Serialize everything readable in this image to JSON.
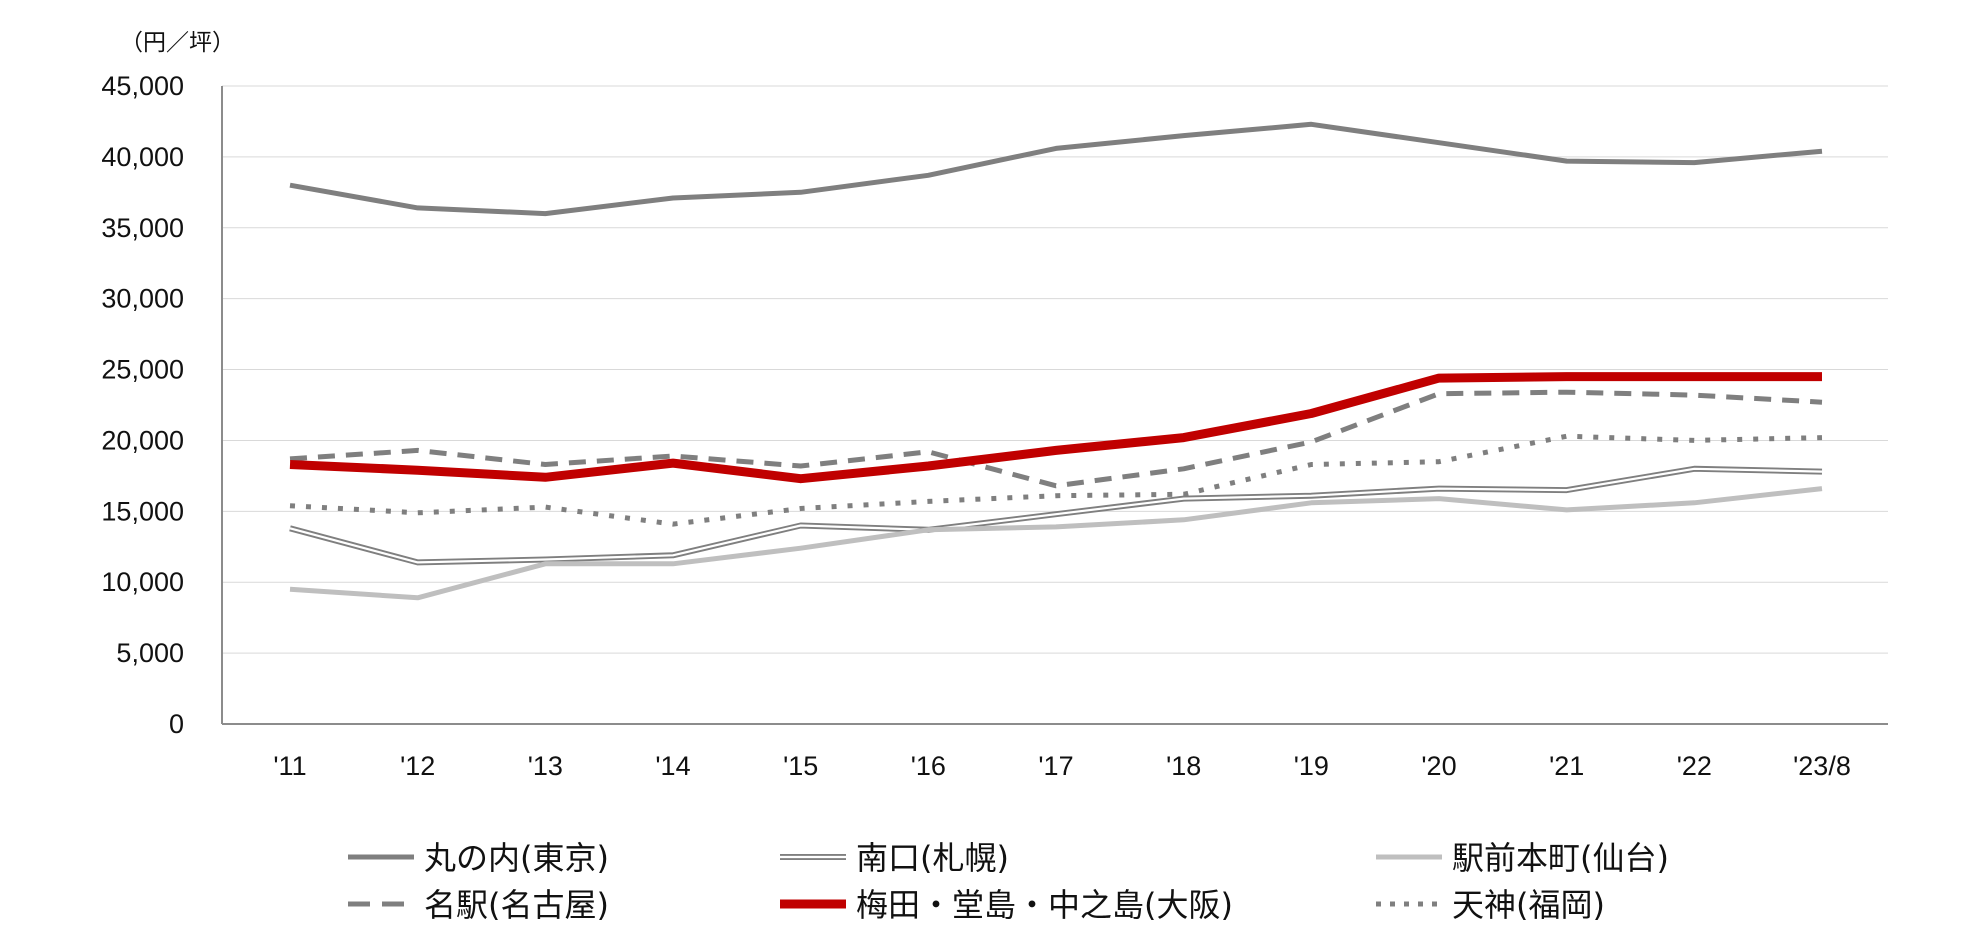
{
  "chart_data": {
    "type": "line",
    "title": "",
    "unit_label": "（円／坪）",
    "xlabel": "",
    "ylabel": "",
    "categories": [
      "'11",
      "'12",
      "'13",
      "'14",
      "'15",
      "'16",
      "'17",
      "'18",
      "'19",
      "'20",
      "'21",
      "'22",
      "'23/8"
    ],
    "ylim": [
      0,
      45000
    ],
    "yticks": [
      0,
      5000,
      10000,
      15000,
      20000,
      25000,
      30000,
      35000,
      40000,
      45000
    ],
    "ytick_labels": [
      "0",
      "5,000",
      "10,000",
      "15,000",
      "20,000",
      "25,000",
      "30,000",
      "35,000",
      "40,000",
      "45,000"
    ],
    "grid": true,
    "legend_position": "bottom",
    "series": [
      {
        "name": "丸の内(東京)",
        "style": "solid-thick",
        "color": "#7f7f7f",
        "values": [
          38000,
          36400,
          36000,
          37100,
          37500,
          38700,
          40600,
          41500,
          42300,
          41000,
          39700,
          39600,
          40400
        ]
      },
      {
        "name": "南口(札幌)",
        "style": "double",
        "color": "#7f7f7f",
        "values": [
          13800,
          11400,
          11600,
          11900,
          14000,
          13700,
          14800,
          15900,
          16100,
          16600,
          16500,
          18000,
          17800
        ]
      },
      {
        "name": "駅前本町(仙台)",
        "style": "solid-light",
        "color": "#bfbfbf",
        "values": [
          9500,
          8900,
          11300,
          11300,
          12400,
          13700,
          13900,
          14400,
          15600,
          15900,
          15100,
          15600,
          16600
        ]
      },
      {
        "name": "名駅(名古屋)",
        "style": "dashed",
        "color": "#7f7f7f",
        "values": [
          18700,
          19300,
          18300,
          18900,
          18200,
          19200,
          16800,
          18000,
          19900,
          23300,
          23400,
          23200,
          22700
        ]
      },
      {
        "name": "梅田・堂島・中之島(大阪)",
        "style": "solid-red",
        "color": "#c00000",
        "values": [
          18300,
          17900,
          17400,
          18400,
          17300,
          18200,
          19300,
          20200,
          21900,
          24400,
          24500,
          24500,
          24500
        ]
      },
      {
        "name": "天神(福岡)",
        "style": "dotted",
        "color": "#7f7f7f",
        "values": [
          15400,
          14900,
          15300,
          14100,
          15200,
          15700,
          16100,
          16200,
          18300,
          18500,
          20300,
          20000,
          20200
        ]
      }
    ],
    "legend_order": [
      [
        "丸の内(東京)",
        "南口(札幌)",
        "駅前本町(仙台)"
      ],
      [
        "名駅(名古屋)",
        "梅田・堂島・中之島(大阪)",
        "天神(福岡)"
      ]
    ]
  }
}
